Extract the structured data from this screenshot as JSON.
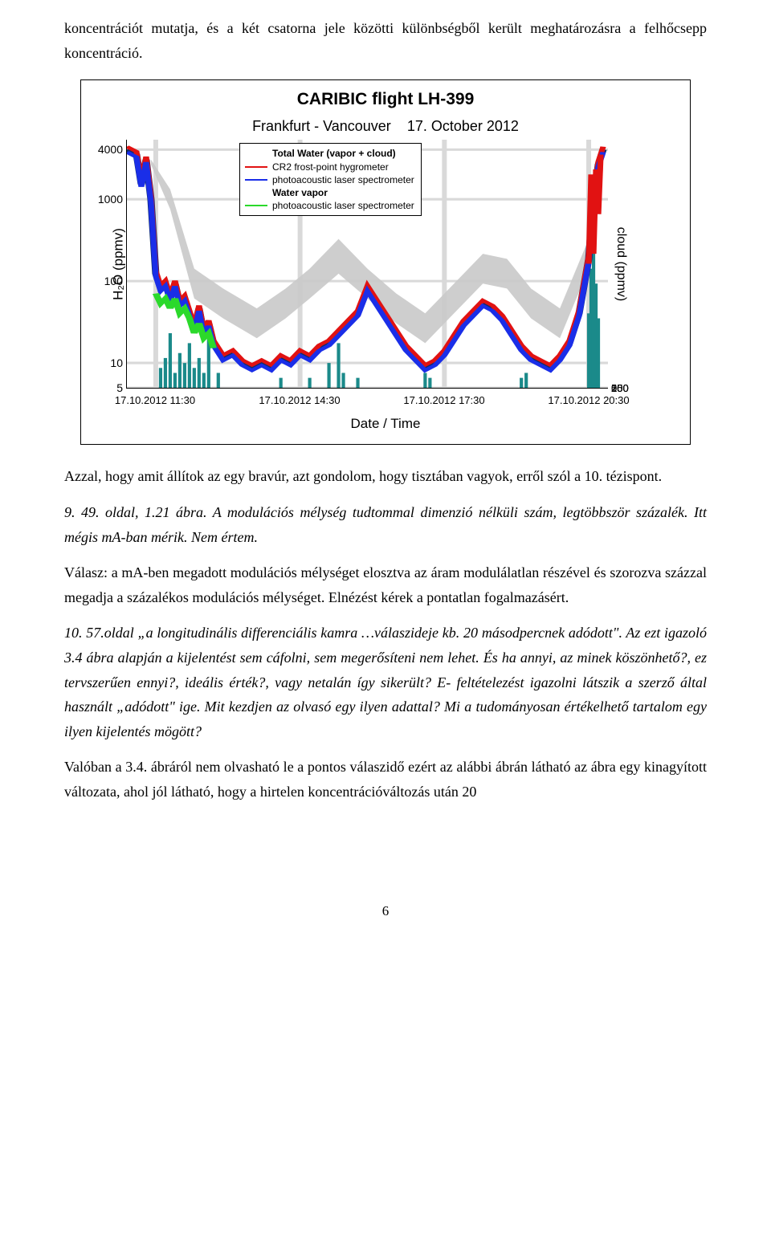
{
  "intro_para": "koncentrációt mutatja, és a két csatorna jele közötti különbségből került meghatározásra a felhőcsepp koncentráció.",
  "chart": {
    "type": "line",
    "title_main": "CARIBIC flight LH-399",
    "title_sub1": "Frankfurt - Vancouver",
    "title_sub2": "17. October 2012",
    "y_label_left": "H₂O (ppmv)",
    "y_label_right": "cloud (ppmv)",
    "x_label": "Date / Time",
    "y_scale": "log",
    "y_ticks_left": [
      "5",
      "10",
      "100",
      "1000",
      "4000"
    ],
    "y_tick_left_positions_pct": [
      100,
      90,
      57,
      24,
      4
    ],
    "y_ticks_right": [
      "0",
      "50",
      "100",
      "150",
      "200",
      "250"
    ],
    "y_tick_right_positions_pct": [
      0,
      7,
      14,
      21,
      28,
      35
    ],
    "x_ticks": [
      "17.10.2012 11:30",
      "17.10.2012 14:30",
      "17.10.2012 17:30",
      "17.10.2012 20:30"
    ],
    "x_tick_positions_pct": [
      6,
      36,
      66,
      96
    ],
    "legend": {
      "h1": "Total Water (vapor + cloud)",
      "r1_label": "CR2 frost-point hygrometer",
      "r1_color": "#e11212",
      "r2_label": "photoacoustic laser spectrometer",
      "r2_color": "#1a2ee8",
      "h2": "Water vapor",
      "r3_label": "photoacoustic laser spectrometer",
      "r3_color": "#2bd92b"
    },
    "colors": {
      "background": "#ffffff",
      "grid": "#d9d9d9",
      "envelope": "#c9c9c9",
      "line_red": "#e11212",
      "line_blue": "#1a2ee8",
      "line_green": "#2bd92b",
      "line_navy": "#0d2c6b",
      "bars_teal": "#1b8a8a",
      "border": "#000000"
    },
    "envelope_points": [
      [
        5,
        8
      ],
      [
        9,
        20
      ],
      [
        14,
        52
      ],
      [
        20,
        60
      ],
      [
        27,
        68
      ],
      [
        33,
        60
      ],
      [
        38,
        52
      ],
      [
        44,
        40
      ],
      [
        50,
        52
      ],
      [
        56,
        62
      ],
      [
        62,
        70
      ],
      [
        68,
        58
      ],
      [
        74,
        46
      ],
      [
        79,
        48
      ],
      [
        84,
        60
      ],
      [
        90,
        68
      ],
      [
        96,
        40
      ],
      [
        99,
        8
      ]
    ],
    "envelope_lower": [
      [
        5,
        10
      ],
      [
        9,
        28
      ],
      [
        14,
        64
      ],
      [
        20,
        72
      ],
      [
        27,
        80
      ],
      [
        33,
        72
      ],
      [
        38,
        64
      ],
      [
        44,
        54
      ],
      [
        50,
        64
      ],
      [
        56,
        74
      ],
      [
        62,
        82
      ],
      [
        68,
        70
      ],
      [
        74,
        58
      ],
      [
        79,
        60
      ],
      [
        84,
        72
      ],
      [
        90,
        80
      ],
      [
        96,
        52
      ],
      [
        99,
        12
      ]
    ],
    "main_line": [
      [
        0,
        4
      ],
      [
        2,
        6
      ],
      [
        3,
        18
      ],
      [
        4,
        8
      ],
      [
        5,
        24
      ],
      [
        6,
        54
      ],
      [
        7,
        60
      ],
      [
        8,
        58
      ],
      [
        9,
        64
      ],
      [
        10,
        58
      ],
      [
        11,
        66
      ],
      [
        12,
        64
      ],
      [
        13,
        70
      ],
      [
        14,
        76
      ],
      [
        15,
        68
      ],
      [
        16,
        78
      ],
      [
        17,
        74
      ],
      [
        18,
        82
      ],
      [
        19,
        85
      ],
      [
        20,
        88
      ],
      [
        22,
        86
      ],
      [
        24,
        90
      ],
      [
        26,
        92
      ],
      [
        28,
        90
      ],
      [
        30,
        92
      ],
      [
        32,
        88
      ],
      [
        34,
        90
      ],
      [
        36,
        86
      ],
      [
        38,
        88
      ],
      [
        40,
        84
      ],
      [
        42,
        82
      ],
      [
        44,
        78
      ],
      [
        46,
        74
      ],
      [
        48,
        70
      ],
      [
        50,
        60
      ],
      [
        52,
        66
      ],
      [
        54,
        72
      ],
      [
        56,
        78
      ],
      [
        58,
        84
      ],
      [
        60,
        88
      ],
      [
        62,
        92
      ],
      [
        64,
        90
      ],
      [
        66,
        86
      ],
      [
        68,
        80
      ],
      [
        70,
        74
      ],
      [
        72,
        70
      ],
      [
        74,
        66
      ],
      [
        76,
        68
      ],
      [
        78,
        72
      ],
      [
        80,
        78
      ],
      [
        82,
        84
      ],
      [
        84,
        88
      ],
      [
        86,
        90
      ],
      [
        88,
        92
      ],
      [
        90,
        88
      ],
      [
        92,
        82
      ],
      [
        94,
        70
      ],
      [
        96,
        48
      ],
      [
        97,
        24
      ],
      [
        98,
        10
      ],
      [
        99,
        4
      ]
    ],
    "green_line": [
      [
        6,
        62
      ],
      [
        7,
        66
      ],
      [
        8,
        64
      ],
      [
        9,
        68
      ],
      [
        10,
        64
      ],
      [
        11,
        70
      ],
      [
        12,
        68
      ],
      [
        13,
        72
      ],
      [
        14,
        78
      ],
      [
        15,
        74
      ],
      [
        16,
        80
      ],
      [
        17,
        78
      ],
      [
        18,
        84
      ]
    ],
    "red_spikes": [
      [
        96,
        50
      ],
      [
        96.5,
        14
      ],
      [
        97,
        46
      ],
      [
        97.5,
        12
      ],
      [
        98,
        30
      ],
      [
        98.5,
        6
      ]
    ],
    "teal_bars": [
      [
        7,
        8
      ],
      [
        8,
        12
      ],
      [
        9,
        22
      ],
      [
        10,
        6
      ],
      [
        11,
        14
      ],
      [
        12,
        10
      ],
      [
        13,
        18
      ],
      [
        14,
        8
      ],
      [
        15,
        12
      ],
      [
        16,
        6
      ],
      [
        17,
        20
      ],
      [
        19,
        6
      ],
      [
        32,
        4
      ],
      [
        38,
        4
      ],
      [
        42,
        10
      ],
      [
        44,
        18
      ],
      [
        45,
        6
      ],
      [
        48,
        4
      ],
      [
        62,
        6
      ],
      [
        63,
        4
      ],
      [
        82,
        4
      ],
      [
        83,
        6
      ],
      [
        96,
        30
      ],
      [
        96.5,
        48
      ],
      [
        97,
        56
      ],
      [
        97.5,
        42
      ],
      [
        98,
        28
      ]
    ]
  },
  "para2": "Azzal, hogy amit állítok az egy bravúr, azt gondolom, hogy tisztában vagyok, erről szól a 10. tézispont.",
  "para3_lead": "9. 49. oldal, 1.21 ábra. A modulációs mélység tudtommal dimenzió nélküli szám, legtöbbször százalék. Itt mégis mA-ban mérik. Nem értem.",
  "para4": "Válasz: a mA-ben megadott modulációs mélységet elosztva az áram modulálatlan részével és szorozva százzal megadja a százalékos modulációs mélységet. Elnézést kérek a pontatlan fogalmazásért.",
  "para5_lead_q": "10. 57.oldal",
  "para5_q_rest": " „a longitudinális differenciális kamra …válaszideje kb. 20 másodpercnek adódott\". Az ezt igazoló 3.4 ábra alapján a kijelentést sem cáfolni, sem megerősíteni nem lehet. És ha annyi, az minek köszönhető?, ez tervszerűen ennyi?, ideális érték?, vagy netalán így sikerült? E- feltételezést igazolni látszik a szerző által használt „adódott\" ige. Mit kezdjen az olvasó egy ilyen adattal? Mi a tudományosan értékelhető tartalom egy ilyen kijelentés mögött?",
  "para6": "Valóban a 3.4. ábráról nem olvasható le a pontos válaszidő ezért az alábbi ábrán látható az ábra egy kinagyított változata, ahol jól látható, hogy a hirtelen koncentrációváltozás után 20",
  "page_number": "6"
}
